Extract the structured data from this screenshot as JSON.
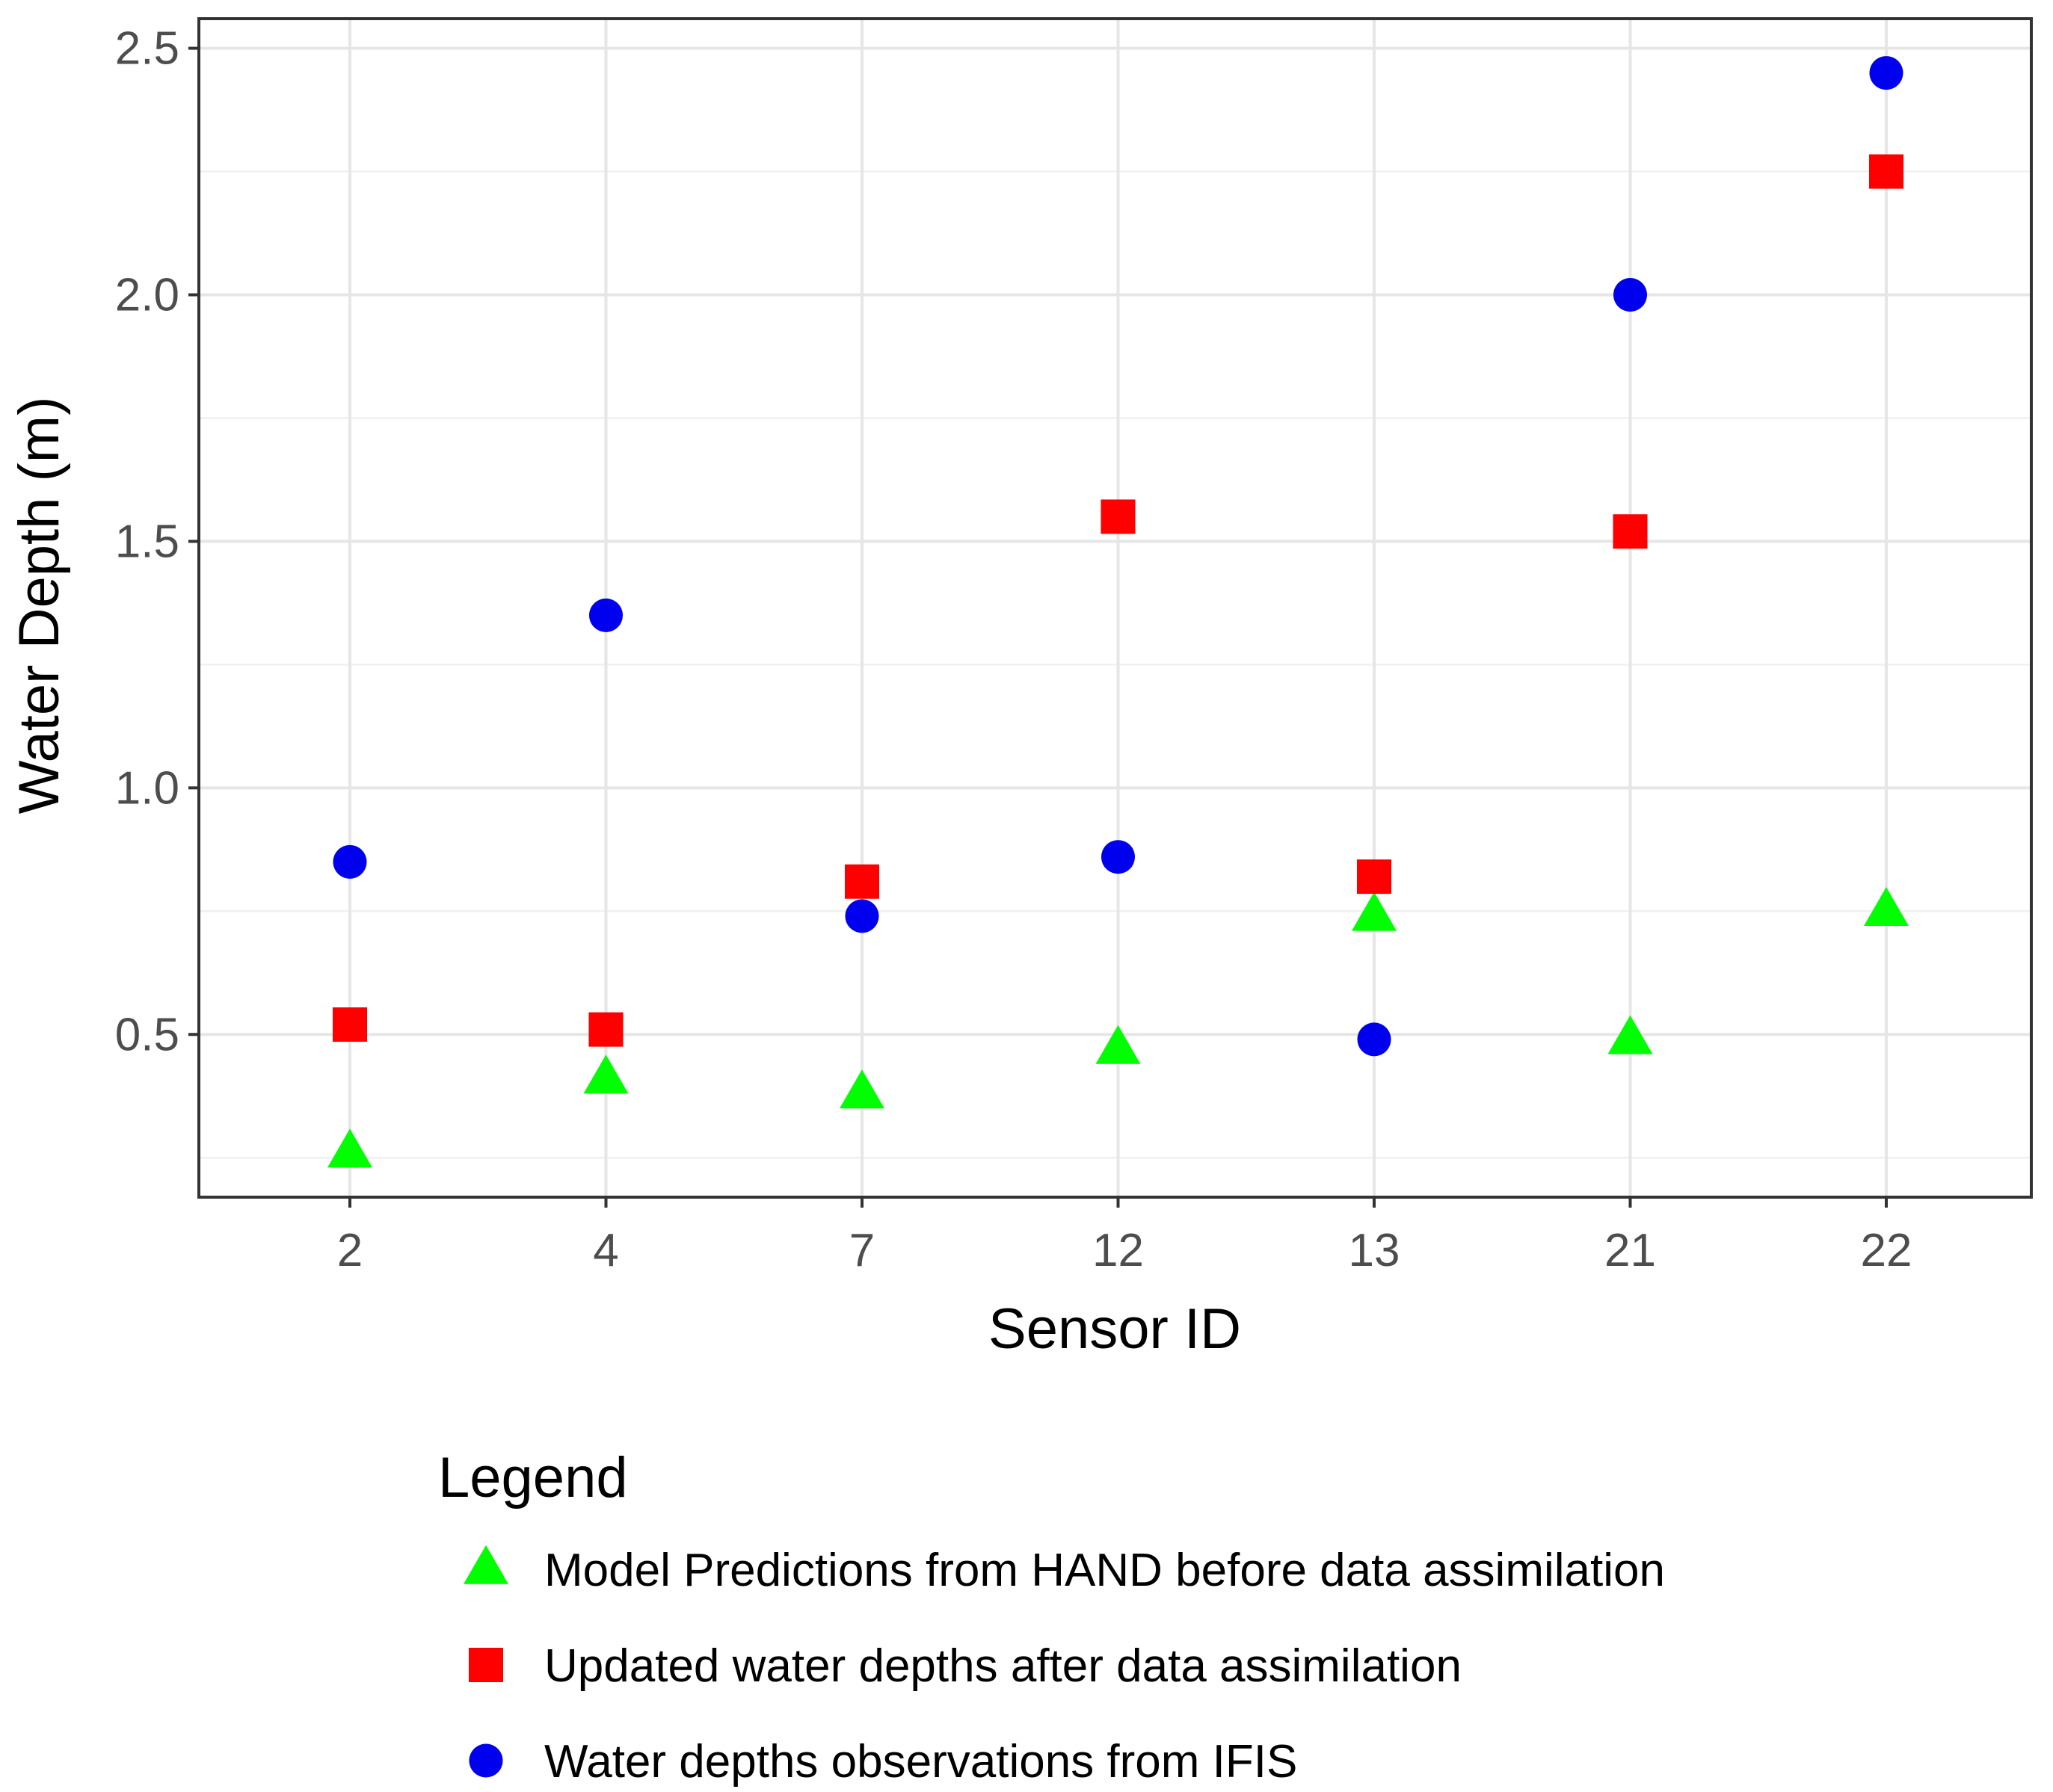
{
  "chart_data": {
    "type": "scatter",
    "title": "",
    "xlabel": "Sensor ID",
    "ylabel": "Water Depth (m)",
    "categories": [
      "2",
      "4",
      "7",
      "12",
      "13",
      "21",
      "22"
    ],
    "ylim": [
      0.17,
      2.56
    ],
    "y_ticks": [
      0.5,
      1.0,
      1.5,
      2.0,
      2.5
    ],
    "y_tick_labels": [
      "0.5",
      "1.0",
      "1.5",
      "2.0",
      "2.5"
    ],
    "grid": true,
    "legend_position": "bottom",
    "legend_title": "Legend",
    "series": [
      {
        "name": "Model Predictions from HAND before data assimilation",
        "shape": "triangle",
        "color": "#00ff00",
        "values": [
          0.26,
          0.41,
          0.38,
          0.47,
          0.74,
          0.49,
          0.75
        ]
      },
      {
        "name": "Updated water depths after data assimilation",
        "shape": "square",
        "color": "#ff0000",
        "values": [
          0.52,
          0.51,
          0.81,
          1.55,
          0.82,
          1.52,
          2.25
        ]
      },
      {
        "name": "Water depths observations from IFIS",
        "shape": "circle",
        "color": "#0000ee",
        "values": [
          0.85,
          1.35,
          0.74,
          0.86,
          0.49,
          2.0,
          2.45
        ]
      }
    ]
  }
}
